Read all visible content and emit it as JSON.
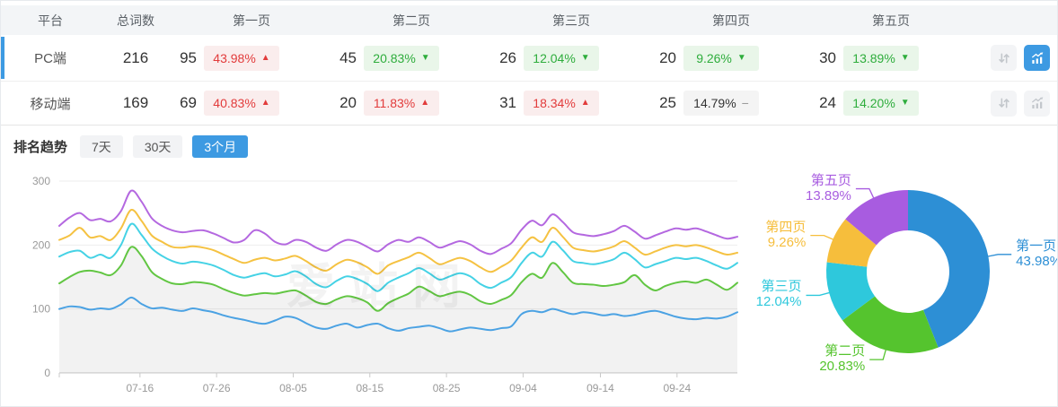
{
  "table": {
    "columns": [
      "平台",
      "总词数",
      "第一页",
      "第二页",
      "第三页",
      "第四页",
      "第五页"
    ],
    "rows": [
      {
        "platform": "PC端",
        "total": "216",
        "selected": true,
        "chart_active": true,
        "pages": [
          {
            "count": "95",
            "pct": "43.98%",
            "trend": "up",
            "arrow": "▲"
          },
          {
            "count": "45",
            "pct": "20.83%",
            "trend": "down",
            "arrow": "▼"
          },
          {
            "count": "26",
            "pct": "12.04%",
            "trend": "down",
            "arrow": "▼"
          },
          {
            "count": "20",
            "pct": "9.26%",
            "trend": "down",
            "arrow": "▼"
          },
          {
            "count": "30",
            "pct": "13.89%",
            "trend": "down",
            "arrow": "▼"
          }
        ]
      },
      {
        "platform": "移动端",
        "total": "169",
        "selected": false,
        "chart_active": false,
        "pages": [
          {
            "count": "69",
            "pct": "40.83%",
            "trend": "up",
            "arrow": "▲"
          },
          {
            "count": "20",
            "pct": "11.83%",
            "trend": "up",
            "arrow": "▲"
          },
          {
            "count": "31",
            "pct": "18.34%",
            "trend": "up",
            "arrow": "▲"
          },
          {
            "count": "25",
            "pct": "14.79%",
            "trend": "flat",
            "arrow": "−"
          },
          {
            "count": "24",
            "pct": "14.20%",
            "trend": "down",
            "arrow": "▼"
          }
        ]
      }
    ]
  },
  "trend": {
    "title": "排名趋势",
    "tabs": [
      {
        "label": "7天",
        "active": false
      },
      {
        "label": "30天",
        "active": false
      },
      {
        "label": "3个月",
        "active": true
      }
    ]
  },
  "watermark": "爱站网",
  "colors": {
    "accent": "#3D9AE2",
    "up_red": "#E23B3B",
    "down_green": "#2EAD3C",
    "flat_gray": "#999999",
    "header_bg": "#F3F5F7"
  },
  "chart_data": [
    {
      "type": "line",
      "title": "排名趋势（3个月）",
      "xlabel": "",
      "ylabel": "",
      "ylim": [
        0,
        300
      ],
      "y_ticks": [
        0,
        100,
        200,
        300
      ],
      "grid": true,
      "legend": "none",
      "x_ticks": [
        {
          "label": "07-16",
          "pos": 0.119
        },
        {
          "label": "07-26",
          "pos": 0.232
        },
        {
          "label": "08-05",
          "pos": 0.345
        },
        {
          "label": "08-15",
          "pos": 0.458
        },
        {
          "label": "08-25",
          "pos": 0.571
        },
        {
          "label": "09-04",
          "pos": 0.684
        },
        {
          "label": "09-14",
          "pos": 0.798
        },
        {
          "label": "09-24",
          "pos": 0.911
        }
      ],
      "series": [
        {
          "name": "第一页",
          "color": "#4BA2E3",
          "area": false,
          "values": [
            100,
            104,
            103,
            99,
            101,
            100,
            107,
            118,
            108,
            101,
            102,
            99,
            97,
            101,
            98,
            95,
            90,
            86,
            83,
            79,
            77,
            82,
            88,
            86,
            78,
            71,
            69,
            74,
            77,
            71,
            75,
            77,
            70,
            66,
            70,
            72,
            74,
            70,
            65,
            68,
            71,
            69,
            67,
            70,
            73,
            92,
            97,
            95,
            100,
            96,
            92,
            95,
            93,
            90,
            92,
            89,
            91,
            95,
            97,
            93,
            88,
            85,
            84,
            86,
            85,
            88,
            95
          ]
        },
        {
          "name": "第二页",
          "color": "#62C643",
          "area": true,
          "area_color": "rgba(0,0,0,0.05)",
          "values": [
            140,
            150,
            158,
            160,
            157,
            153,
            168,
            197,
            183,
            158,
            147,
            140,
            139,
            142,
            141,
            138,
            131,
            125,
            121,
            123,
            125,
            124,
            127,
            129,
            121,
            111,
            108,
            115,
            120,
            117,
            110,
            97,
            109,
            117,
            124,
            135,
            128,
            120,
            124,
            127,
            122,
            112,
            108,
            114,
            122,
            142,
            155,
            149,
            172,
            158,
            141,
            139,
            138,
            136,
            138,
            142,
            153,
            138,
            129,
            136,
            141,
            143,
            141,
            146,
            138,
            130,
            141
          ]
        },
        {
          "name": "第三页",
          "color": "#45D2E5",
          "area": false,
          "values": [
            182,
            189,
            191,
            180,
            185,
            180,
            200,
            233,
            216,
            195,
            183,
            175,
            171,
            174,
            172,
            168,
            161,
            153,
            149,
            153,
            156,
            151,
            154,
            159,
            151,
            139,
            134,
            144,
            151,
            147,
            139,
            128,
            141,
            149,
            156,
            164,
            156,
            146,
            151,
            156,
            151,
            139,
            133,
            141,
            150,
            172,
            188,
            182,
            205,
            192,
            175,
            172,
            170,
            173,
            178,
            188,
            178,
            165,
            170,
            175,
            180,
            178,
            180,
            175,
            168,
            163,
            172
          ]
        },
        {
          "name": "第四页",
          "color": "#F5C242",
          "area": false,
          "values": [
            208,
            215,
            227,
            212,
            214,
            208,
            226,
            255,
            238,
            215,
            205,
            197,
            196,
            198,
            196,
            192,
            185,
            178,
            172,
            177,
            180,
            176,
            179,
            183,
            175,
            165,
            160,
            170,
            177,
            173,
            165,
            155,
            168,
            175,
            181,
            188,
            180,
            170,
            175,
            180,
            175,
            165,
            158,
            166,
            176,
            196,
            212,
            205,
            227,
            213,
            196,
            192,
            190,
            193,
            198,
            206,
            196,
            185,
            190,
            196,
            200,
            198,
            200,
            196,
            190,
            185,
            188
          ]
        },
        {
          "name": "第五页",
          "color": "#B468E0",
          "area": false,
          "values": [
            230,
            243,
            250,
            239,
            241,
            237,
            253,
            285,
            268,
            242,
            230,
            223,
            220,
            222,
            223,
            218,
            211,
            204,
            208,
            223,
            218,
            205,
            201,
            208,
            205,
            196,
            191,
            201,
            208,
            205,
            197,
            190,
            201,
            208,
            205,
            212,
            205,
            196,
            201,
            206,
            201,
            191,
            186,
            194,
            203,
            224,
            238,
            231,
            248,
            236,
            220,
            216,
            214,
            217,
            222,
            230,
            221,
            210,
            215,
            221,
            226,
            224,
            226,
            221,
            215,
            210,
            213
          ]
        }
      ]
    },
    {
      "type": "pie",
      "donut": true,
      "start_angle": "top",
      "direction": "clockwise",
      "inner_radius_ratio": 0.5,
      "slices": [
        {
          "label": "第一页",
          "pct": 43.98,
          "color": "#2D8FD5"
        },
        {
          "label": "第二页",
          "pct": 20.83,
          "color": "#55C42E"
        },
        {
          "label": "第三页",
          "pct": 12.04,
          "color": "#2EC8DC"
        },
        {
          "label": "第四页",
          "pct": 9.26,
          "color": "#F6BE3C"
        },
        {
          "label": "第五页",
          "pct": 13.89,
          "color": "#A85CE0"
        }
      ]
    }
  ]
}
